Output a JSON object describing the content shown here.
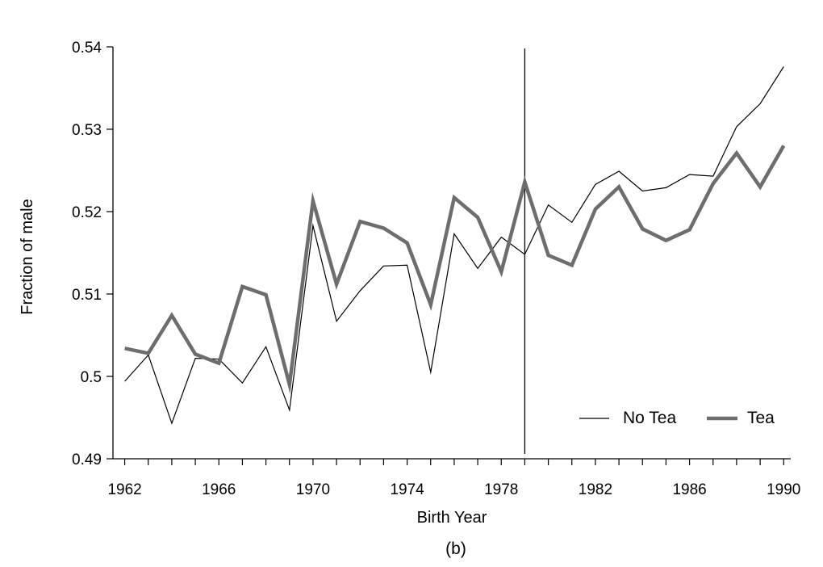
{
  "chart_data": {
    "type": "line",
    "xlabel": "Birth Year",
    "ylabel": "Fraction of male",
    "caption": "(b)",
    "xlim": [
      1961.5,
      1990.3
    ],
    "ylim": [
      0.49,
      0.54
    ],
    "x_ticks": [
      1962,
      1966,
      1970,
      1974,
      1978,
      1982,
      1986,
      1990
    ],
    "x_minor_ticks": [
      1962,
      1963,
      1964,
      1965,
      1966,
      1967,
      1968,
      1969,
      1970,
      1971,
      1972,
      1973,
      1974,
      1975,
      1976,
      1977,
      1978,
      1979,
      1980,
      1981,
      1982,
      1983,
      1984,
      1985,
      1986,
      1987,
      1988,
      1989,
      1990
    ],
    "y_ticks": [
      0.49,
      0.5,
      0.51,
      0.52,
      0.53,
      0.54
    ],
    "y_tick_labels": [
      "0.49",
      "0.5",
      "0.51",
      "0.52",
      "0.53",
      "0.54"
    ],
    "vertical_line_x": 1979,
    "grid": false,
    "legend_position": "bottom-right",
    "x": [
      1962,
      1963,
      1964,
      1965,
      1966,
      1967,
      1968,
      1969,
      1970,
      1971,
      1972,
      1973,
      1974,
      1975,
      1976,
      1977,
      1978,
      1979,
      1980,
      1981,
      1982,
      1983,
      1984,
      1985,
      1986,
      1987,
      1988,
      1989,
      1990
    ],
    "series": [
      {
        "name": "No Tea",
        "color": "#000000",
        "values": [
          0.4994,
          0.5026,
          0.4943,
          0.5022,
          0.5021,
          0.4992,
          0.5036,
          0.4959,
          0.5183,
          0.5067,
          0.5104,
          0.5134,
          0.5135,
          0.5005,
          0.5173,
          0.5131,
          0.5169,
          0.5148,
          0.5208,
          0.5187,
          0.5233,
          0.5249,
          0.5225,
          0.5229,
          0.5245,
          0.5243,
          0.5303,
          0.5331,
          0.5376
        ]
      },
      {
        "name": "Tea",
        "color": "#6d6d6d",
        "values": [
          0.5034,
          0.5028,
          0.5074,
          0.5027,
          0.5016,
          0.5109,
          0.5099,
          0.499,
          0.5213,
          0.5112,
          0.5188,
          0.518,
          0.5162,
          0.5087,
          0.5217,
          0.5193,
          0.5127,
          0.5236,
          0.5147,
          0.5135,
          0.5203,
          0.523,
          0.5179,
          0.5165,
          0.5178,
          0.5234,
          0.5271,
          0.523,
          0.528
        ]
      }
    ]
  }
}
